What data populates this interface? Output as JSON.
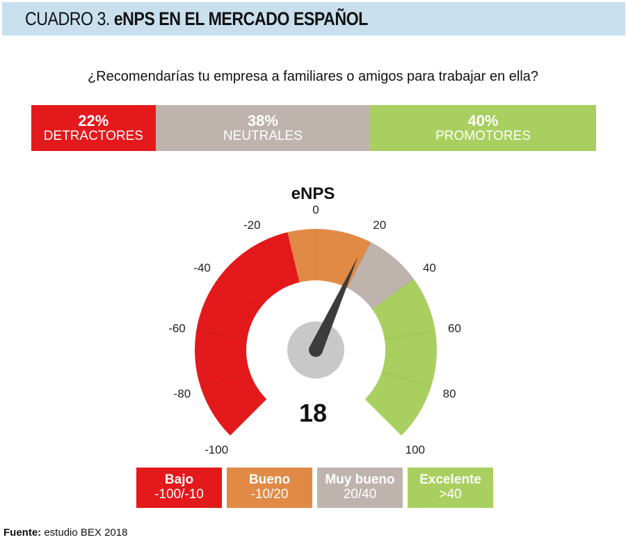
{
  "header": {
    "prefix": "CUADRO 3.",
    "title": "eNPS EN EL MERCADO ESPAÑOL"
  },
  "question": "¿Recomendarías tu empresa a familiares o amigos para trabajar en ella?",
  "distribution": [
    {
      "pct": "22%",
      "label": "DETRACTORES",
      "value": 22,
      "color": "#e3191b"
    },
    {
      "pct": "38%",
      "label": "NEUTRALES",
      "value": 38,
      "color": "#bfb4ad"
    },
    {
      "pct": "40%",
      "label": "PROMOTORES",
      "value": 40,
      "color": "#a9cf60"
    }
  ],
  "chart_data": {
    "type": "gauge",
    "title": "eNPS",
    "value": 18,
    "value_label": "18",
    "range": [
      -100,
      100
    ],
    "ticks": [
      -100,
      -80,
      -60,
      -40,
      -20,
      0,
      20,
      40,
      60,
      80,
      100
    ],
    "tick_labels": [
      "-100",
      "-80",
      "-60",
      "-40",
      "-20",
      "0",
      "20",
      "40",
      "60",
      "80",
      "100"
    ],
    "bands": [
      {
        "name": "Bajo",
        "range_label": "-100/-10",
        "from": -100,
        "to": -10,
        "color": "#e3191b"
      },
      {
        "name": "Bueno",
        "range_label": "-10/20",
        "from": -10,
        "to": 20,
        "color": "#e18a46"
      },
      {
        "name": "Muy bueno",
        "range_label": "20/40",
        "from": 20,
        "to": 40,
        "color": "#bfb4ad"
      },
      {
        "name": "Excelente",
        "range_label": ">40",
        "from": 40,
        "to": 100,
        "color": "#a9cf60"
      }
    ],
    "needle_color": "#3c3c3c",
    "hub_color": "#c8c8c8"
  },
  "source": {
    "label": "Fuente:",
    "text": "estudio BEX 2018"
  }
}
